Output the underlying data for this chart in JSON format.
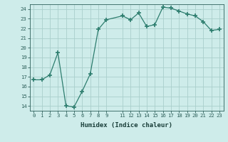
{
  "x": [
    0,
    1,
    2,
    3,
    4,
    5,
    6,
    7,
    8,
    9,
    11,
    12,
    13,
    14,
    15,
    16,
    17,
    18,
    19,
    20,
    21,
    22,
    23
  ],
  "y": [
    16.7,
    16.7,
    17.2,
    19.5,
    14.0,
    13.9,
    15.5,
    17.3,
    21.9,
    22.9,
    23.3,
    22.9,
    23.6,
    22.2,
    22.4,
    24.2,
    24.1,
    23.8,
    23.5,
    23.3,
    22.7,
    21.8,
    21.9
  ],
  "line_color": "#2d7d6e",
  "marker": "+",
  "bg_color": "#ceecea",
  "grid_color": "#aacfcc",
  "tick_color": "#2d5f5a",
  "label_color": "#1a3f3a",
  "xlabel": "Humidex (Indice chaleur)",
  "xlim": [
    -0.5,
    23.5
  ],
  "ylim": [
    13.5,
    24.5
  ],
  "yticks": [
    14,
    15,
    16,
    17,
    18,
    19,
    20,
    21,
    22,
    23,
    24
  ],
  "xticks": [
    0,
    1,
    2,
    3,
    4,
    5,
    6,
    7,
    8,
    9,
    11,
    12,
    13,
    14,
    15,
    16,
    17,
    18,
    19,
    20,
    21,
    22,
    23
  ]
}
